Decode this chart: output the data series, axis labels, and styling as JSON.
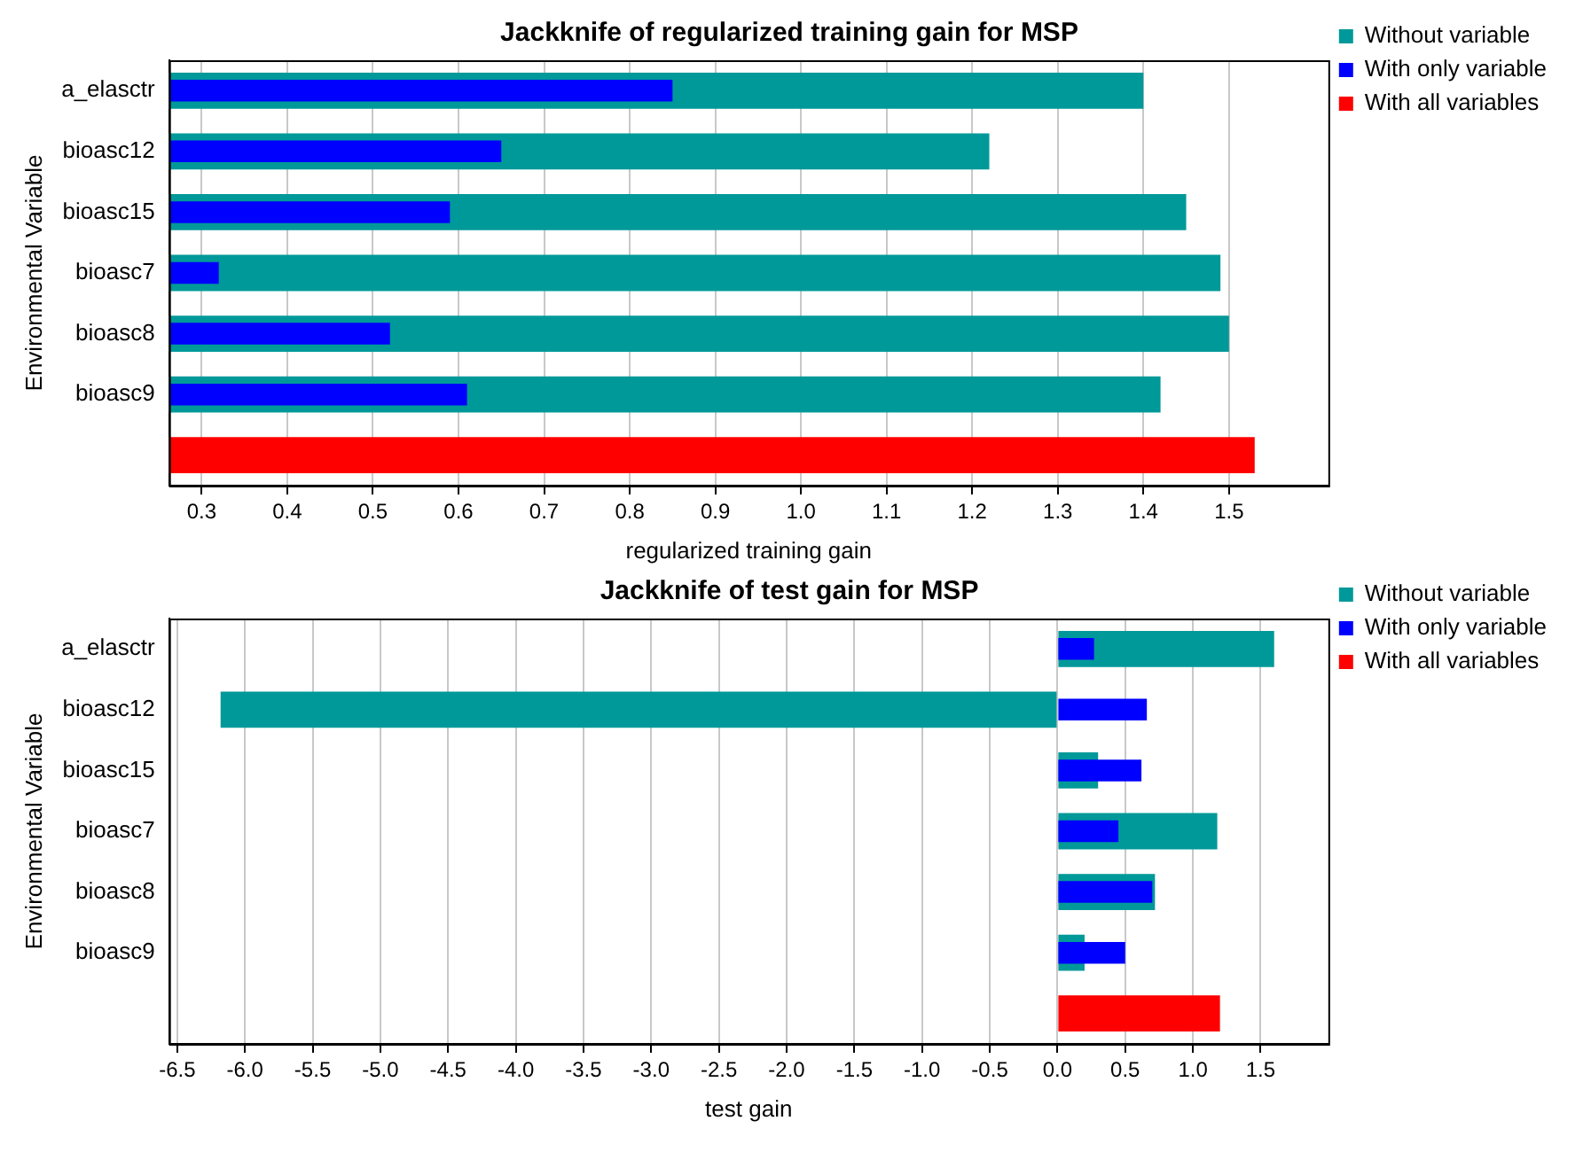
{
  "chart_data": [
    {
      "type": "bar",
      "orientation": "horizontal",
      "title": "Jackknife of regularized training gain for MSP",
      "xlabel": "regularized training gain",
      "ylabel": "Environmental Variable",
      "categories": [
        "a_elasctr",
        "bioasc12",
        "bioasc15",
        "bioasc7",
        "bioasc8",
        "bioasc9",
        null
      ],
      "series": [
        {
          "name": "Without variable",
          "color": "#009999",
          "values": [
            1.4,
            1.22,
            1.45,
            1.49,
            1.5,
            1.42,
            null
          ]
        },
        {
          "name": "With only variable",
          "color": "#0000ff",
          "values": [
            0.85,
            0.65,
            0.59,
            0.32,
            0.52,
            0.61,
            null
          ]
        },
        {
          "name": "With all variables",
          "color": "#ff0000",
          "values": [
            null,
            null,
            null,
            null,
            null,
            null,
            1.53
          ]
        }
      ],
      "xlim": [
        0.262,
        1.616
      ],
      "xticks": [
        0.3,
        0.4,
        0.5,
        0.6,
        0.7,
        0.8,
        0.9,
        {
          "value": 1,
          "label": "1.0"
        },
        1.1,
        1.2,
        1.3,
        1.4,
        1.5
      ],
      "grid": "x",
      "legend": "right"
    },
    {
      "type": "bar",
      "orientation": "horizontal",
      "title": "Jackknife of test gain for MSP",
      "xlabel": "test gain",
      "ylabel": "Environmental Variable",
      "categories": [
        "a_elasctr",
        "bioasc12",
        "bioasc15",
        "bioasc7",
        "bioasc8",
        "bioasc9",
        null
      ],
      "series": [
        {
          "name": "Without variable",
          "color": "#009999",
          "values": [
            1.6,
            -6.18,
            0.3,
            1.18,
            0.72,
            0.2,
            null
          ]
        },
        {
          "name": "With only variable",
          "color": "#0000ff",
          "values": [
            0.27,
            0.66,
            0.62,
            0.45,
            0.7,
            0.5,
            null
          ]
        },
        {
          "name": "With all variables",
          "color": "#ff0000",
          "values": [
            null,
            null,
            null,
            null,
            null,
            null,
            1.2
          ]
        }
      ],
      "xlim": [
        -6.56,
        2.0
      ],
      "xticks": [
        -6.5,
        {
          "value": -6,
          "label": "-6.0"
        },
        -5.5,
        {
          "value": -5,
          "label": "-5.0"
        },
        -4.5,
        {
          "value": -4,
          "label": "-4.0"
        },
        -3.5,
        {
          "value": -3,
          "label": "-3.0"
        },
        -2.5,
        {
          "value": -2,
          "label": "-2.0"
        },
        -1.5,
        {
          "value": -1,
          "label": "-1.0"
        },
        -0.5,
        {
          "value": 0,
          "label": "0.0"
        },
        0.5,
        {
          "value": 1,
          "label": "1.0"
        },
        1.5
      ],
      "grid": "x",
      "legend": "right"
    }
  ]
}
